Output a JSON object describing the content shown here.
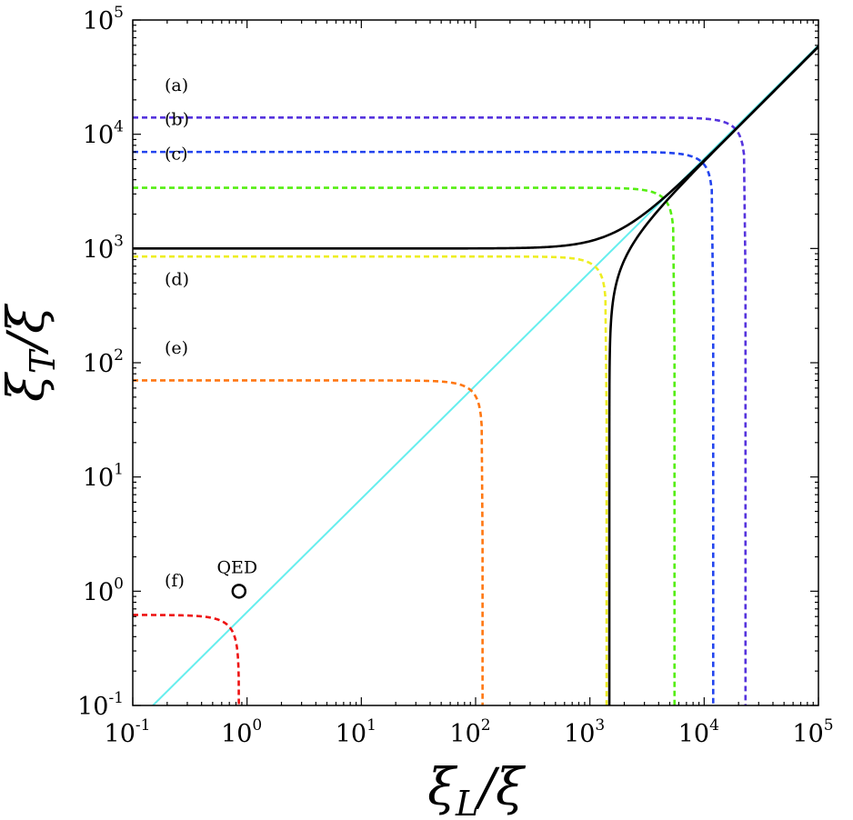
{
  "chart_data": {
    "type": "line",
    "title": "",
    "xlabel": "ξ_L/ξ",
    "ylabel": "ξ_T/ξ",
    "x_scale": "log",
    "y_scale": "log",
    "xlim": [
      0.1,
      100000
    ],
    "ylim": [
      0.1,
      100000
    ],
    "grid": false,
    "x_ticks": [
      {
        "base": "10",
        "exp": "-1",
        "value": 0.1
      },
      {
        "base": "10",
        "exp": "0",
        "value": 1
      },
      {
        "base": "10",
        "exp": "1",
        "value": 10
      },
      {
        "base": "10",
        "exp": "2",
        "value": 100
      },
      {
        "base": "10",
        "exp": "3",
        "value": 1000
      },
      {
        "base": "10",
        "exp": "4",
        "value": 10000
      },
      {
        "base": "10",
        "exp": "5",
        "value": 100000
      }
    ],
    "y_ticks": [
      {
        "base": "10",
        "exp": "-1",
        "value": 0.1
      },
      {
        "base": "10",
        "exp": "0",
        "value": 1
      },
      {
        "base": "10",
        "exp": "1",
        "value": 10
      },
      {
        "base": "10",
        "exp": "2",
        "value": 100
      },
      {
        "base": "10",
        "exp": "3",
        "value": 1000
      },
      {
        "base": "10",
        "exp": "4",
        "value": 10000
      },
      {
        "base": "10",
        "exp": "5",
        "value": 100000
      }
    ],
    "series": [
      {
        "label": "(a)",
        "style": "dashed",
        "color": "#5533dd",
        "x_max": 23000,
        "y_max": 14000,
        "label_x": 0.19,
        "label_y": 24000
      },
      {
        "label": "(b)",
        "style": "dashed",
        "color": "#2244ee",
        "x_max": 12000,
        "y_max": 7000,
        "label_x": 0.19,
        "label_y": 12000
      },
      {
        "label": "(c)",
        "style": "dashed",
        "color": "#55ee11",
        "x_max": 5500,
        "y_max": 3400,
        "label_x": 0.19,
        "label_y": 6000
      },
      {
        "label": "(d)",
        "style": "dashed",
        "color": "#eeee22",
        "x_max": 1400,
        "y_max": 850,
        "label_x": 0.19,
        "label_y": 480
      },
      {
        "label": "(e)",
        "style": "dashed",
        "color": "#ff7711",
        "x_max": 115,
        "y_max": 70,
        "label_x": 0.19,
        "label_y": 120
      },
      {
        "label": "(f)",
        "style": "dashed",
        "color": "#ee1111",
        "x_max": 0.85,
        "y_max": 0.62,
        "label_x": 0.19,
        "label_y": 1.1
      }
    ],
    "black_curves": {
      "color": "#000000",
      "asymptote": 1000,
      "x_max": 100000
    },
    "diagonal": {
      "color": "#66eeee",
      "x": [
        0.15,
        100000
      ],
      "y": [
        0.1,
        60000
      ]
    },
    "annotations": [
      {
        "text": "QED",
        "x": 0.85,
        "y": 1.0,
        "marker": "open-circle"
      }
    ]
  }
}
